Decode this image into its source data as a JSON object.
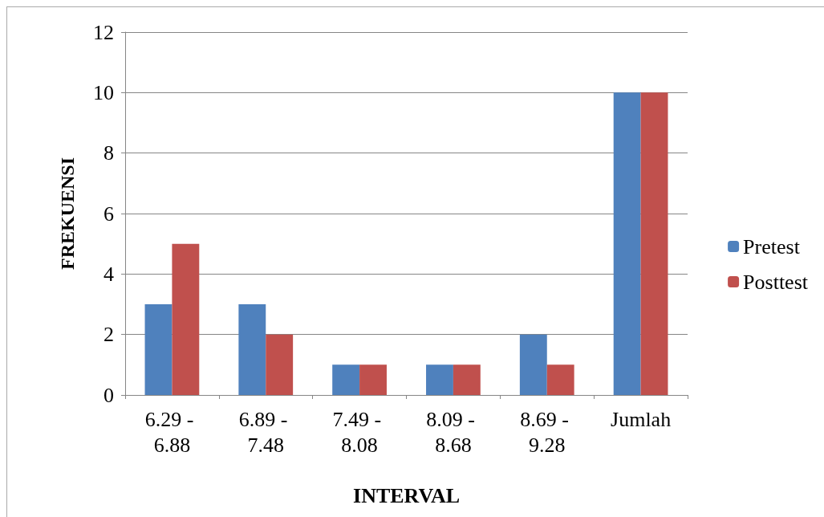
{
  "chart_data": {
    "type": "bar",
    "xlabel": "INTERVAL",
    "ylabel": "FREKUENSI",
    "categories": [
      "6.29 - 6.88",
      "6.89 - 7.48",
      "7.49 - 8.08",
      "8.09 - 8.68",
      "8.69 - 9.28",
      "Jumlah"
    ],
    "series": [
      {
        "name": "Pretest",
        "color": "#4f81bd",
        "values": [
          3,
          3,
          1,
          1,
          2,
          10
        ]
      },
      {
        "name": "Posttest",
        "color": "#c0504d",
        "values": [
          5,
          2,
          1,
          1,
          1,
          10
        ]
      }
    ],
    "ylim": [
      0,
      12
    ],
    "yticks": [
      0,
      2,
      4,
      6,
      8,
      10,
      12
    ],
    "grid": "y",
    "legend": "right"
  }
}
